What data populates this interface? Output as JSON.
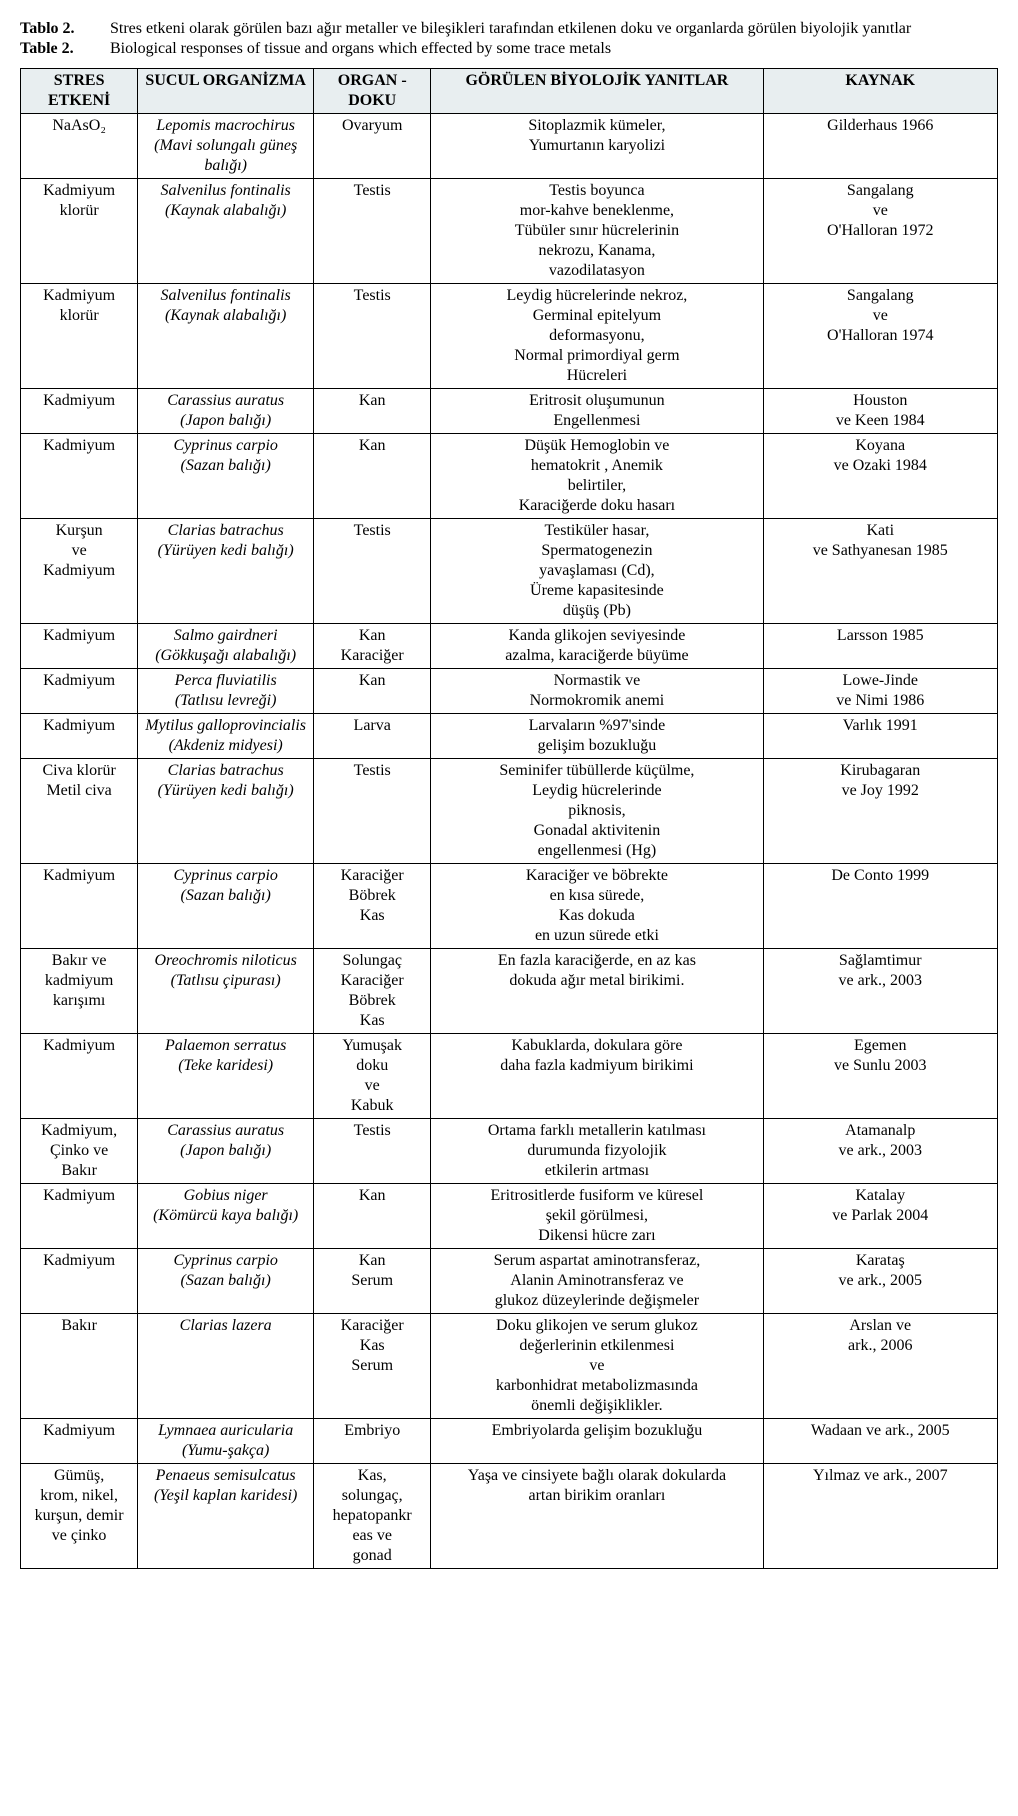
{
  "captions": [
    {
      "label": "Tablo 2.",
      "text": "Stres etkeni olarak görülen bazı ağır metaller ve bileşikleri tarafından etkilenen doku ve organlarda görülen biyolojik yanıtlar"
    },
    {
      "label": "Table 2.",
      "text": "Biological responses of tissue and organs which effected by some trace metals"
    }
  ],
  "columns": [
    "STRES ETKENİ",
    "SUCUL ORGANİZMA",
    "ORGAN - DOKU",
    "GÖRÜLEN BİYOLOJİK YANITLAR",
    "KAYNAK"
  ],
  "rows": [
    {
      "stress": "NaAsO₂",
      "org_sci": "Lepomis macrochirus",
      "org_common": "(Mavi solungalı güneş balığı)",
      "organ": "Ovaryum",
      "response": "Sitoplazmik kümeler,\nYumurtanın karyolizi",
      "source": "Gilderhaus 1966"
    },
    {
      "stress": "Kadmiyum klorür",
      "org_sci": "Salvenilus fontinalis",
      "org_common": "(Kaynak alabalığı)",
      "organ": "Testis",
      "response": "Testis boyunca\nmor-kahve beneklenme,\nTübüler sınır hücrelerinin\nnekrozu, Kanama,\nvazodilatasyon",
      "source": "Sangalang\nve\nO'Halloran 1972"
    },
    {
      "stress": "Kadmiyum klorür",
      "org_sci": "Salvenilus fontinalis",
      "org_common": "(Kaynak alabalığı)",
      "organ": "Testis",
      "response": "Leydig hücrelerinde nekroz,\nGerminal epitelyum\ndeformasyonu,\nNormal primordiyal germ\nHücreleri",
      "source": "Sangalang\nve\nO'Halloran 1974"
    },
    {
      "stress": "Kadmiyum",
      "org_sci": "Carassius auratus",
      "org_common": "(Japon balığı)",
      "organ": "Kan",
      "response": "Eritrosit oluşumunun\nEngellenmesi",
      "source": "Houston\nve Keen 1984"
    },
    {
      "stress": "Kadmiyum",
      "org_sci": "Cyprinus carpio",
      "org_common": "(Sazan balığı)",
      "organ": "Kan",
      "response": "Düşük Hemoglobin ve\nhematokrit , Anemik\nbelirtiler,\nKaraciğerde doku hasarı",
      "source": "Koyana\nve Ozaki 1984"
    },
    {
      "stress": "Kurşun\nve\nKadmiyum",
      "org_sci": "Clarias batrachus",
      "org_common": "(Yürüyen kedi balığı)",
      "organ": "Testis",
      "response": "Testiküler hasar,\nSpermatogenezin\nyavaşlaması (Cd),\nÜreme kapasitesinde\ndüşüş (Pb)",
      "source": "Kati\nve Sathyanesan 1985"
    },
    {
      "stress": "Kadmiyum",
      "org_sci": "Salmo gairdneri",
      "org_common": "(Gökkuşağı alabalığı)",
      "organ": "Kan\nKaraciğer",
      "response": "Kanda glikojen seviyesinde\nazalma, karaciğerde büyüme",
      "source": "Larsson 1985"
    },
    {
      "stress": "Kadmiyum",
      "org_sci": "Perca fluviatilis",
      "org_common": "(Tatlısu levreği)",
      "organ": "Kan",
      "response": "Normastik ve\nNormokromik anemi",
      "source": "Lowe-Jinde\nve Nimi 1986"
    },
    {
      "stress": "Kadmiyum",
      "org_sci": "Mytilus galloprovincialis",
      "org_common": "(Akdeniz midyesi)",
      "organ": "Larva",
      "response": "Larvaların %97'sinde\ngelişim bozukluğu",
      "source": "Varlık 1991"
    },
    {
      "stress": "Civa klorür\nMetil civa",
      "org_sci": "Clarias batrachus",
      "org_common": "(Yürüyen kedi balığı)",
      "organ": "Testis",
      "response": "Seminifer tübüllerde küçülme,\nLeydig hücrelerinde\npiknosis,\nGonadal aktivitenin\nengellenmesi (Hg)",
      "source": "Kirubagaran\nve Joy 1992"
    },
    {
      "stress": "Kadmiyum",
      "org_sci": "Cyprinus carpio",
      "org_common": "(Sazan balığı)",
      "organ": "Karaciğer\nBöbrek\nKas",
      "response": "Karaciğer ve böbrekte\nen kısa sürede,\nKas dokuda\nen uzun sürede etki",
      "source": "De Conto 1999"
    },
    {
      "stress": "Bakır ve\nkadmiyum\nkarışımı",
      "org_sci": "Oreochromis niloticus",
      "org_common": "(Tatlısu çipurası)",
      "organ": "Solungaç\nKaraciğer\nBöbrek\nKas",
      "response": "En fazla karaciğerde, en az kas\ndokuda ağır metal birikimi.",
      "source": "Sağlamtimur\nve ark., 2003"
    },
    {
      "stress": "Kadmiyum",
      "org_sci": "Palaemon serratus",
      "org_common": "(Teke karidesi)",
      "organ": "Yumuşak\ndoku\nve\nKabuk",
      "response": "Kabuklarda, dokulara göre\ndaha fazla kadmiyum birikimi",
      "source": "Egemen\nve Sunlu 2003"
    },
    {
      "stress": "Kadmiyum,\nÇinko ve\nBakır",
      "org_sci": "Carassius auratus",
      "org_common": "(Japon balığı)",
      "organ": "Testis",
      "response": "Ortama farklı metallerin katılması\ndurumunda fizyolojik\netkilerin artması",
      "source": "Atamanalp\nve ark., 2003"
    },
    {
      "stress": "Kadmiyum",
      "org_sci": "Gobius niger",
      "org_common": "(Kömürcü kaya balığı)",
      "organ": "Kan",
      "response": "Eritrositlerde fusiform ve küresel\nşekil görülmesi,\nDikensi hücre zarı",
      "source": "Katalay\nve Parlak 2004"
    },
    {
      "stress": "Kadmiyum",
      "org_sci": "Cyprinus carpio",
      "org_common": "(Sazan balığı)",
      "organ": "Kan\nSerum",
      "response": "Serum aspartat aminotransferaz,\nAlanin Aminotransferaz ve\nglukoz düzeylerinde değişmeler",
      "source": "Karataş\nve ark., 2005"
    },
    {
      "stress": "Bakır",
      "org_sci": "Clarias lazera",
      "org_common": "",
      "organ": "Karaciğer\nKas\nSerum",
      "response": "Doku glikojen ve serum glukoz\ndeğerlerinin etkilenmesi\nve\nkarbonhidrat  metabolizmasında\nönemli değişiklikler.",
      "source": "Arslan ve\nark., 2006"
    },
    {
      "stress": "Kadmiyum",
      "org_sci": "Lymnaea auricularia",
      "org_common": "(Yumu-şakça)",
      "organ": "Embriyo",
      "response": "Embriyolarda gelişim bozukluğu",
      "source": "Wadaan ve ark., 2005"
    },
    {
      "stress": "Gümüş,\nkrom, nikel,\nkurşun, demir\nve çinko",
      "org_sci": "Penaeus semisulcatus",
      "org_common": "(Yeşil kaplan karidesi)",
      "organ": "Kas,\nsolungaç,\nhepatopankr\neas ve\ngonad",
      "response": "Yaşa ve cinsiyete bağlı olarak dokularda\nartan birikim oranları",
      "source": "Yılmaz ve ark., 2007"
    }
  ]
}
